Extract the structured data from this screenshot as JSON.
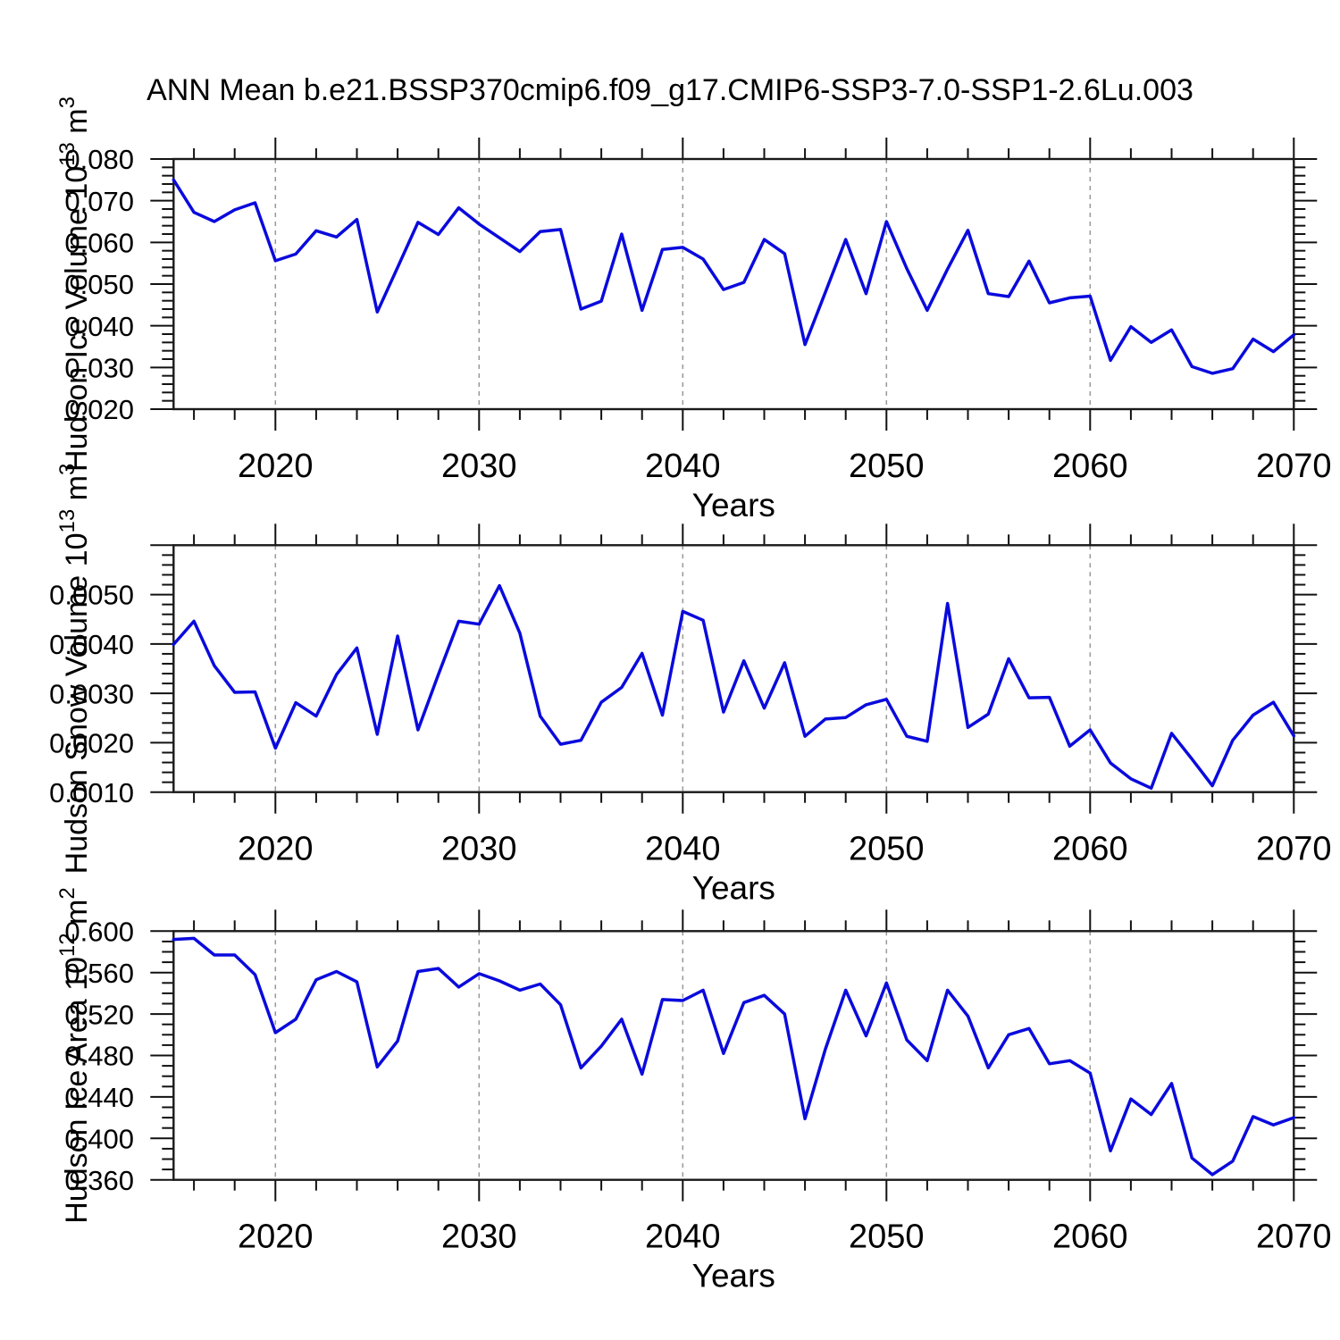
{
  "title": "ANN Mean b.e21.BSSP370cmip6.f09_g17.CMIP6-SSP3-7.0-SSP1-2.6Lu.003",
  "colors": {
    "line": "#0a0add",
    "grid": "#999999",
    "axis": "#1a1a1a",
    "tick": "#111111",
    "text": "#000000",
    "background": "#ffffff"
  },
  "x_axis": {
    "label": "Years",
    "start": 2015,
    "end": 2070,
    "major_tick_interval": 10,
    "minor_tick_interval": 2,
    "tick_labels": [
      "2020",
      "2030",
      "2040",
      "2050",
      "2060",
      "2070"
    ],
    "gridline_years": [
      2020,
      2030,
      2040,
      2050,
      2060
    ]
  },
  "chart_data": [
    {
      "type": "line",
      "ylabel_parts": [
        {
          "text": "Hudson Ice Volume 10",
          "sup": false
        },
        {
          "text": "13",
          "sup": true
        },
        {
          "text": " m",
          "sup": false
        },
        {
          "text": "3",
          "sup": true
        }
      ],
      "xlabel": "Years",
      "ylim": [
        0.02,
        0.08
      ],
      "ymajor_step": 0.01,
      "yminor_step": 0.002,
      "yticks": [
        {
          "value": 0.08,
          "label": "0.080"
        },
        {
          "value": 0.07,
          "label": "0.070"
        },
        {
          "value": 0.06,
          "label": "0.060"
        },
        {
          "value": 0.05,
          "label": "0.050"
        },
        {
          "value": 0.04,
          "label": "0.040"
        },
        {
          "value": 0.03,
          "label": "0.030"
        },
        {
          "value": 0.02,
          "label": "0.020"
        }
      ],
      "x": [
        2015,
        2016,
        2017,
        2018,
        2019,
        2020,
        2021,
        2022,
        2023,
        2024,
        2025,
        2026,
        2027,
        2028,
        2029,
        2030,
        2031,
        2032,
        2033,
        2034,
        2035,
        2036,
        2037,
        2038,
        2039,
        2040,
        2041,
        2042,
        2043,
        2044,
        2045,
        2046,
        2047,
        2048,
        2049,
        2050,
        2051,
        2052,
        2053,
        2054,
        2055,
        2056,
        2057,
        2058,
        2059,
        2060,
        2061,
        2062,
        2063,
        2064,
        2065,
        2066,
        2067,
        2068,
        2069,
        2070
      ],
      "values": [
        0.075,
        0.0672,
        0.065,
        0.0678,
        0.0695,
        0.0556,
        0.0572,
        0.0628,
        0.0613,
        0.0655,
        0.0433,
        0.054,
        0.0648,
        0.0619,
        0.0683,
        0.0644,
        0.0611,
        0.0578,
        0.0626,
        0.0631,
        0.044,
        0.0459,
        0.062,
        0.0437,
        0.0583,
        0.0588,
        0.056,
        0.0487,
        0.0504,
        0.0607,
        0.0573,
        0.0355,
        0.048,
        0.0607,
        0.0477,
        0.065,
        0.0537,
        0.0437,
        0.0536,
        0.0629,
        0.0477,
        0.047,
        0.0555,
        0.0455,
        0.0467,
        0.0471,
        0.0317,
        0.0398,
        0.036,
        0.039,
        0.0302,
        0.0286,
        0.0297,
        0.0368,
        0.0338,
        0.0378
      ]
    },
    {
      "type": "line",
      "ylabel_parts": [
        {
          "text": "Hudson Snow Volume 10",
          "sup": false
        },
        {
          "text": "13",
          "sup": true
        },
        {
          "text": " m",
          "sup": false
        },
        {
          "text": "3",
          "sup": true
        }
      ],
      "xlabel": "Years",
      "ylim": [
        0.001,
        0.006
      ],
      "ymajor_step": 0.001,
      "yminor_step": 0.0002,
      "yticks": [
        {
          "value": 0.005,
          "label": "0.0050"
        },
        {
          "value": 0.004,
          "label": "0.0040"
        },
        {
          "value": 0.003,
          "label": "0.0030"
        },
        {
          "value": 0.002,
          "label": "0.0020"
        },
        {
          "value": 0.001,
          "label": "0.0010"
        }
      ],
      "x": [
        2015,
        2016,
        2017,
        2018,
        2019,
        2020,
        2021,
        2022,
        2023,
        2024,
        2025,
        2026,
        2027,
        2028,
        2029,
        2030,
        2031,
        2032,
        2033,
        2034,
        2035,
        2036,
        2037,
        2038,
        2039,
        2040,
        2041,
        2042,
        2043,
        2044,
        2045,
        2046,
        2047,
        2048,
        2049,
        2050,
        2051,
        2052,
        2053,
        2054,
        2055,
        2056,
        2057,
        2058,
        2059,
        2060,
        2061,
        2062,
        2063,
        2064,
        2065,
        2066,
        2067,
        2068,
        2069,
        2070
      ],
      "values": [
        0.00399,
        0.00446,
        0.00356,
        0.00302,
        0.00303,
        0.00189,
        0.00281,
        0.00254,
        0.00338,
        0.00392,
        0.00217,
        0.00416,
        0.00226,
        0.00338,
        0.00446,
        0.0044,
        0.00518,
        0.00422,
        0.00254,
        0.00197,
        0.00205,
        0.00282,
        0.00312,
        0.00381,
        0.00256,
        0.00466,
        0.00448,
        0.00262,
        0.00366,
        0.0027,
        0.00362,
        0.00213,
        0.00248,
        0.00251,
        0.00277,
        0.00288,
        0.00213,
        0.00203,
        0.00482,
        0.00231,
        0.00258,
        0.0037,
        0.00291,
        0.00292,
        0.00193,
        0.00226,
        0.00159,
        0.00127,
        0.00108,
        0.00219,
        0.00167,
        0.00113,
        0.00205,
        0.00256,
        0.00282,
        0.00214
      ]
    },
    {
      "type": "line",
      "ylabel_parts": [
        {
          "text": "Hudson Ice Area 10",
          "sup": false
        },
        {
          "text": "12",
          "sup": true
        },
        {
          "text": " m",
          "sup": false
        },
        {
          "text": "2",
          "sup": true
        }
      ],
      "xlabel": "Years",
      "ylim": [
        0.36,
        0.6
      ],
      "ymajor_step": 0.04,
      "yminor_step": 0.01,
      "yticks": [
        {
          "value": 0.6,
          "label": "0.600"
        },
        {
          "value": 0.56,
          "label": "0.560"
        },
        {
          "value": 0.52,
          "label": "0.520"
        },
        {
          "value": 0.48,
          "label": "0.480"
        },
        {
          "value": 0.44,
          "label": "0.440"
        },
        {
          "value": 0.4,
          "label": "0.400"
        },
        {
          "value": 0.36,
          "label": "0.360"
        }
      ],
      "x": [
        2015,
        2016,
        2017,
        2018,
        2019,
        2020,
        2021,
        2022,
        2023,
        2024,
        2025,
        2026,
        2027,
        2028,
        2029,
        2030,
        2031,
        2032,
        2033,
        2034,
        2035,
        2036,
        2037,
        2038,
        2039,
        2040,
        2041,
        2042,
        2043,
        2044,
        2045,
        2046,
        2047,
        2048,
        2049,
        2050,
        2051,
        2052,
        2053,
        2054,
        2055,
        2056,
        2057,
        2058,
        2059,
        2060,
        2061,
        2062,
        2063,
        2064,
        2065,
        2066,
        2067,
        2068,
        2069,
        2070
      ],
      "values": [
        0.592,
        0.593,
        0.577,
        0.577,
        0.558,
        0.502,
        0.515,
        0.553,
        0.561,
        0.551,
        0.469,
        0.494,
        0.561,
        0.564,
        0.546,
        0.559,
        0.552,
        0.543,
        0.549,
        0.529,
        0.468,
        0.489,
        0.515,
        0.462,
        0.534,
        0.533,
        0.543,
        0.482,
        0.531,
        0.538,
        0.52,
        0.419,
        0.486,
        0.543,
        0.499,
        0.55,
        0.495,
        0.475,
        0.543,
        0.518,
        0.468,
        0.5,
        0.506,
        0.472,
        0.475,
        0.463,
        0.388,
        0.438,
        0.423,
        0.453,
        0.381,
        0.365,
        0.378,
        0.421,
        0.413,
        0.42
      ]
    }
  ]
}
